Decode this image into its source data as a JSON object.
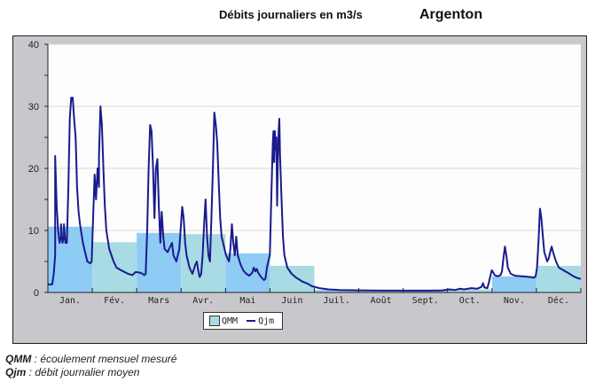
{
  "header": {
    "title": "Débits journaliers en m3/s",
    "station": "Argenton"
  },
  "legend": {
    "qmm_label": "QMM",
    "qjm_label": "Qjm"
  },
  "notes": [
    {
      "key": "QMM",
      "text": " : écoulement mensuel mesuré"
    },
    {
      "key": "Qjm",
      "text": " : débit journalier moyen"
    }
  ],
  "colors": {
    "bar_odd": "#8ecbf5",
    "bar_even": "#a8dbe3",
    "line": "#1a1a8c",
    "frame": "#c8c8cc",
    "plot_bg": "#fcfdfc",
    "grid": "#d8d8d8"
  },
  "chart_data": {
    "type": "bar+line",
    "title": "Débits journaliers en m3/s",
    "subtitle": "Argenton",
    "xlabel": "",
    "ylabel": "m3/s",
    "ylim": [
      0,
      40
    ],
    "yticks": [
      0,
      10,
      20,
      30,
      40
    ],
    "grid": true,
    "legend_position": "bottom-left",
    "categories": [
      "Jan.",
      "Fév.",
      "Mars",
      "Avr.",
      "Mai",
      "Juin",
      "Juil.",
      "Août",
      "Sept.",
      "Oct.",
      "Nov.",
      "Déc."
    ],
    "series": [
      {
        "name": "QMM",
        "type": "bar",
        "values": [
          10.6,
          8.1,
          9.6,
          9.4,
          6.3,
          4.3,
          0.4,
          0.3,
          0.3,
          0.5,
          2.6,
          4.3
        ]
      },
      {
        "name": "Qjm",
        "type": "line",
        "points_day_value": [
          [
            0,
            1.3
          ],
          [
            3,
            1.3
          ],
          [
            4,
            3
          ],
          [
            5,
            6
          ],
          [
            5,
            22
          ],
          [
            6,
            14
          ],
          [
            7,
            10
          ],
          [
            8,
            8
          ],
          [
            9,
            9
          ],
          [
            9,
            11
          ],
          [
            10,
            8
          ],
          [
            11,
            9
          ],
          [
            11,
            11
          ],
          [
            12,
            8
          ],
          [
            13,
            8
          ],
          [
            14,
            17
          ],
          [
            15,
            28
          ],
          [
            16,
            31.4
          ],
          [
            17,
            31.4
          ],
          [
            18,
            28
          ],
          [
            19,
            25
          ],
          [
            20,
            17
          ],
          [
            21,
            13
          ],
          [
            22,
            11
          ],
          [
            24,
            8
          ],
          [
            26,
            6
          ],
          [
            27,
            5
          ],
          [
            29,
            4.7
          ],
          [
            30,
            5
          ],
          [
            31,
            12
          ],
          [
            32,
            19
          ],
          [
            33,
            15
          ],
          [
            34,
            20
          ],
          [
            35,
            17
          ],
          [
            35,
            22
          ],
          [
            36,
            30
          ],
          [
            37,
            27
          ],
          [
            38,
            20
          ],
          [
            39,
            14
          ],
          [
            40,
            10
          ],
          [
            42,
            7
          ],
          [
            45,
            5
          ],
          [
            47,
            4
          ],
          [
            50,
            3.6
          ],
          [
            55,
            3.0
          ],
          [
            58,
            2.8
          ],
          [
            60,
            3.3
          ],
          [
            63,
            3.2
          ],
          [
            65,
            3.0
          ],
          [
            66,
            2.8
          ],
          [
            67,
            3
          ],
          [
            68,
            10
          ],
          [
            69,
            20
          ],
          [
            70,
            27
          ],
          [
            71,
            26
          ],
          [
            72,
            20
          ],
          [
            73,
            12
          ],
          [
            74,
            20
          ],
          [
            75,
            21.5
          ],
          [
            76,
            14
          ],
          [
            77,
            8
          ],
          [
            78,
            13
          ],
          [
            79,
            9
          ],
          [
            80,
            7
          ],
          [
            82,
            6.5
          ],
          [
            84,
            7.5
          ],
          [
            85,
            8
          ],
          [
            86,
            6
          ],
          [
            88,
            5
          ],
          [
            89,
            6
          ],
          [
            90,
            7
          ],
          [
            92,
            13.8
          ],
          [
            93,
            12
          ],
          [
            94,
            8
          ],
          [
            95,
            6
          ],
          [
            97,
            4
          ],
          [
            99,
            3
          ],
          [
            101,
            4.5
          ],
          [
            102,
            5
          ],
          [
            103,
            3.5
          ],
          [
            104,
            2.5
          ],
          [
            105,
            3
          ],
          [
            106,
            6
          ],
          [
            107,
            11
          ],
          [
            108,
            15
          ],
          [
            109,
            9
          ],
          [
            110,
            6
          ],
          [
            111,
            5
          ],
          [
            112,
            12
          ],
          [
            113,
            20
          ],
          [
            114,
            29
          ],
          [
            115,
            27
          ],
          [
            116,
            24
          ],
          [
            117,
            18
          ],
          [
            118,
            12
          ],
          [
            119,
            9
          ],
          [
            120,
            8
          ],
          [
            122,
            6
          ],
          [
            124,
            5
          ],
          [
            125,
            7
          ],
          [
            126,
            11
          ],
          [
            127,
            8
          ],
          [
            128,
            6
          ],
          [
            129,
            9
          ],
          [
            130,
            6
          ],
          [
            132,
            4.5
          ],
          [
            134,
            3.5
          ],
          [
            136,
            3
          ],
          [
            138,
            2.7
          ],
          [
            140,
            3.2
          ],
          [
            141,
            4
          ],
          [
            142,
            3.4
          ],
          [
            143,
            3.8
          ],
          [
            144,
            3.2
          ],
          [
            146,
            2.5
          ],
          [
            148,
            2.0
          ],
          [
            149,
            2.2
          ],
          [
            150,
            4
          ],
          [
            151,
            5
          ],
          [
            152,
            6
          ],
          [
            153,
            15
          ],
          [
            154,
            24
          ],
          [
            154.5,
            26
          ],
          [
            155,
            21
          ],
          [
            155.5,
            26
          ],
          [
            156,
            23
          ],
          [
            156.5,
            25
          ],
          [
            157,
            14
          ],
          [
            157.5,
            21
          ],
          [
            158,
            26
          ],
          [
            158.5,
            28
          ],
          [
            159,
            22
          ],
          [
            160,
            15
          ],
          [
            161,
            9
          ],
          [
            162,
            6
          ],
          [
            164,
            4
          ],
          [
            167,
            3
          ],
          [
            170,
            2.4
          ],
          [
            174,
            1.8
          ],
          [
            178,
            1.4
          ],
          [
            181,
            1.0
          ],
          [
            186,
            0.7
          ],
          [
            192,
            0.5
          ],
          [
            200,
            0.4
          ],
          [
            215,
            0.35
          ],
          [
            230,
            0.3
          ],
          [
            240,
            0.3
          ],
          [
            250,
            0.3
          ],
          [
            260,
            0.3
          ],
          [
            270,
            0.35
          ],
          [
            275,
            0.5
          ],
          [
            279,
            0.4
          ],
          [
            282,
            0.6
          ],
          [
            285,
            0.5
          ],
          [
            290,
            0.7
          ],
          [
            294,
            0.6
          ],
          [
            297,
            0.9
          ],
          [
            298,
            1.5
          ],
          [
            299,
            0.8
          ],
          [
            301,
            0.7
          ],
          [
            302,
            1.6
          ],
          [
            303,
            2.6
          ],
          [
            304,
            3.6
          ],
          [
            306,
            2.8
          ],
          [
            308,
            2.6
          ],
          [
            310,
            2.8
          ],
          [
            311,
            3.4
          ],
          [
            312,
            5.5
          ],
          [
            313,
            7.4
          ],
          [
            314,
            6
          ],
          [
            315,
            4
          ],
          [
            317,
            3
          ],
          [
            320,
            2.7
          ],
          [
            325,
            2.6
          ],
          [
            330,
            2.5
          ],
          [
            333,
            2.4
          ],
          [
            334,
            2.6
          ],
          [
            335,
            4
          ],
          [
            336,
            8
          ],
          [
            337,
            13.5
          ],
          [
            338,
            12
          ],
          [
            339,
            9
          ],
          [
            340,
            6.5
          ],
          [
            342,
            5
          ],
          [
            343,
            5.5
          ],
          [
            344,
            6.5
          ],
          [
            345,
            7.4
          ],
          [
            346,
            6.5
          ],
          [
            348,
            5
          ],
          [
            350,
            4
          ],
          [
            353,
            3.6
          ],
          [
            356,
            3.2
          ],
          [
            360,
            2.6
          ],
          [
            363,
            2.3
          ],
          [
            365,
            2.2
          ]
        ]
      }
    ]
  }
}
